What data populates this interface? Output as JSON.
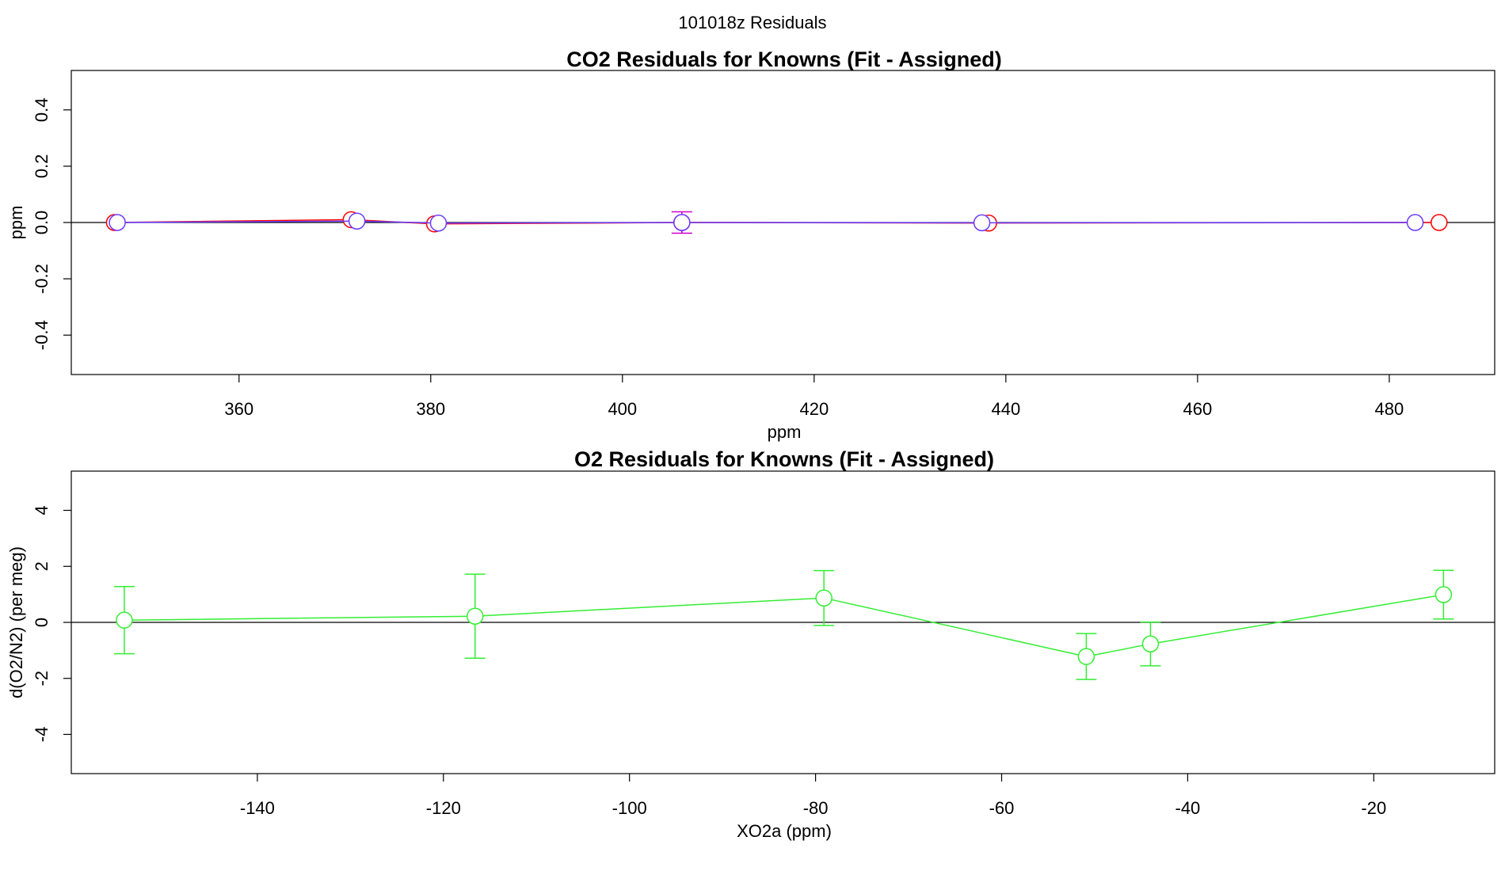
{
  "figure_title": "101018z  Residuals",
  "chart_data": [
    {
      "type": "scatter",
      "title": "CO2 Residuals for Knowns (Fit - Assigned)",
      "xlabel": "ppm",
      "ylabel": "ppm",
      "xlim": [
        342.5,
        491
      ],
      "ylim": [
        -0.54,
        0.54
      ],
      "xticks": [
        360,
        380,
        400,
        420,
        440,
        460,
        480
      ],
      "yticks": [
        -0.4,
        -0.2,
        0.0,
        0.2,
        0.4
      ],
      "ytick_labels": [
        "-0.4",
        "-0.2",
        "0.0",
        "0.2",
        "0.4"
      ],
      "zero_line": 0,
      "series": [
        {
          "name": "red",
          "color": "#ff0000",
          "x": [
            347.0,
            371.7,
            380.4,
            406.2,
            438.2,
            485.2
          ],
          "y": [
            0.0,
            0.01,
            -0.005,
            0.0,
            -0.002,
            0.0
          ],
          "err": [
            null,
            null,
            null,
            null,
            null,
            null
          ]
        },
        {
          "name": "magenta",
          "color": "#cc00cc",
          "x": [
            406.2
          ],
          "y": [
            0.0
          ],
          "err": [
            0.038
          ]
        },
        {
          "name": "blue",
          "color": "#6a3cff",
          "x": [
            347.3,
            372.3,
            380.8,
            406.2,
            437.5,
            482.7
          ],
          "y": [
            0.0,
            0.005,
            -0.002,
            0.0,
            -0.001,
            0.0
          ],
          "err": [
            null,
            null,
            null,
            null,
            null,
            null
          ]
        }
      ]
    },
    {
      "type": "scatter",
      "title": "O2 Residuals for Knowns (Fit - Assigned)",
      "xlabel": "XO2a (ppm)",
      "ylabel": "d(O2/N2) (per meg)",
      "xlim": [
        -160,
        -7
      ],
      "ylim": [
        -5.4,
        5.4
      ],
      "xticks": [
        -140,
        -120,
        -100,
        -80,
        -60,
        -40,
        -20
      ],
      "yticks": [
        -4,
        -2,
        0,
        2,
        4
      ],
      "ytick_labels": [
        "-4",
        "-2",
        "0",
        "2",
        "4"
      ],
      "zero_line": 0,
      "series": [
        {
          "name": "green",
          "color": "#33ee33",
          "x": [
            -154.3,
            -116.6,
            -79.1,
            -50.9,
            -44.0,
            -12.5
          ],
          "y": [
            0.08,
            0.22,
            0.87,
            -1.22,
            -0.77,
            0.99
          ],
          "err": [
            1.2,
            1.5,
            0.98,
            0.82,
            0.78,
            0.87
          ]
        }
      ]
    }
  ]
}
